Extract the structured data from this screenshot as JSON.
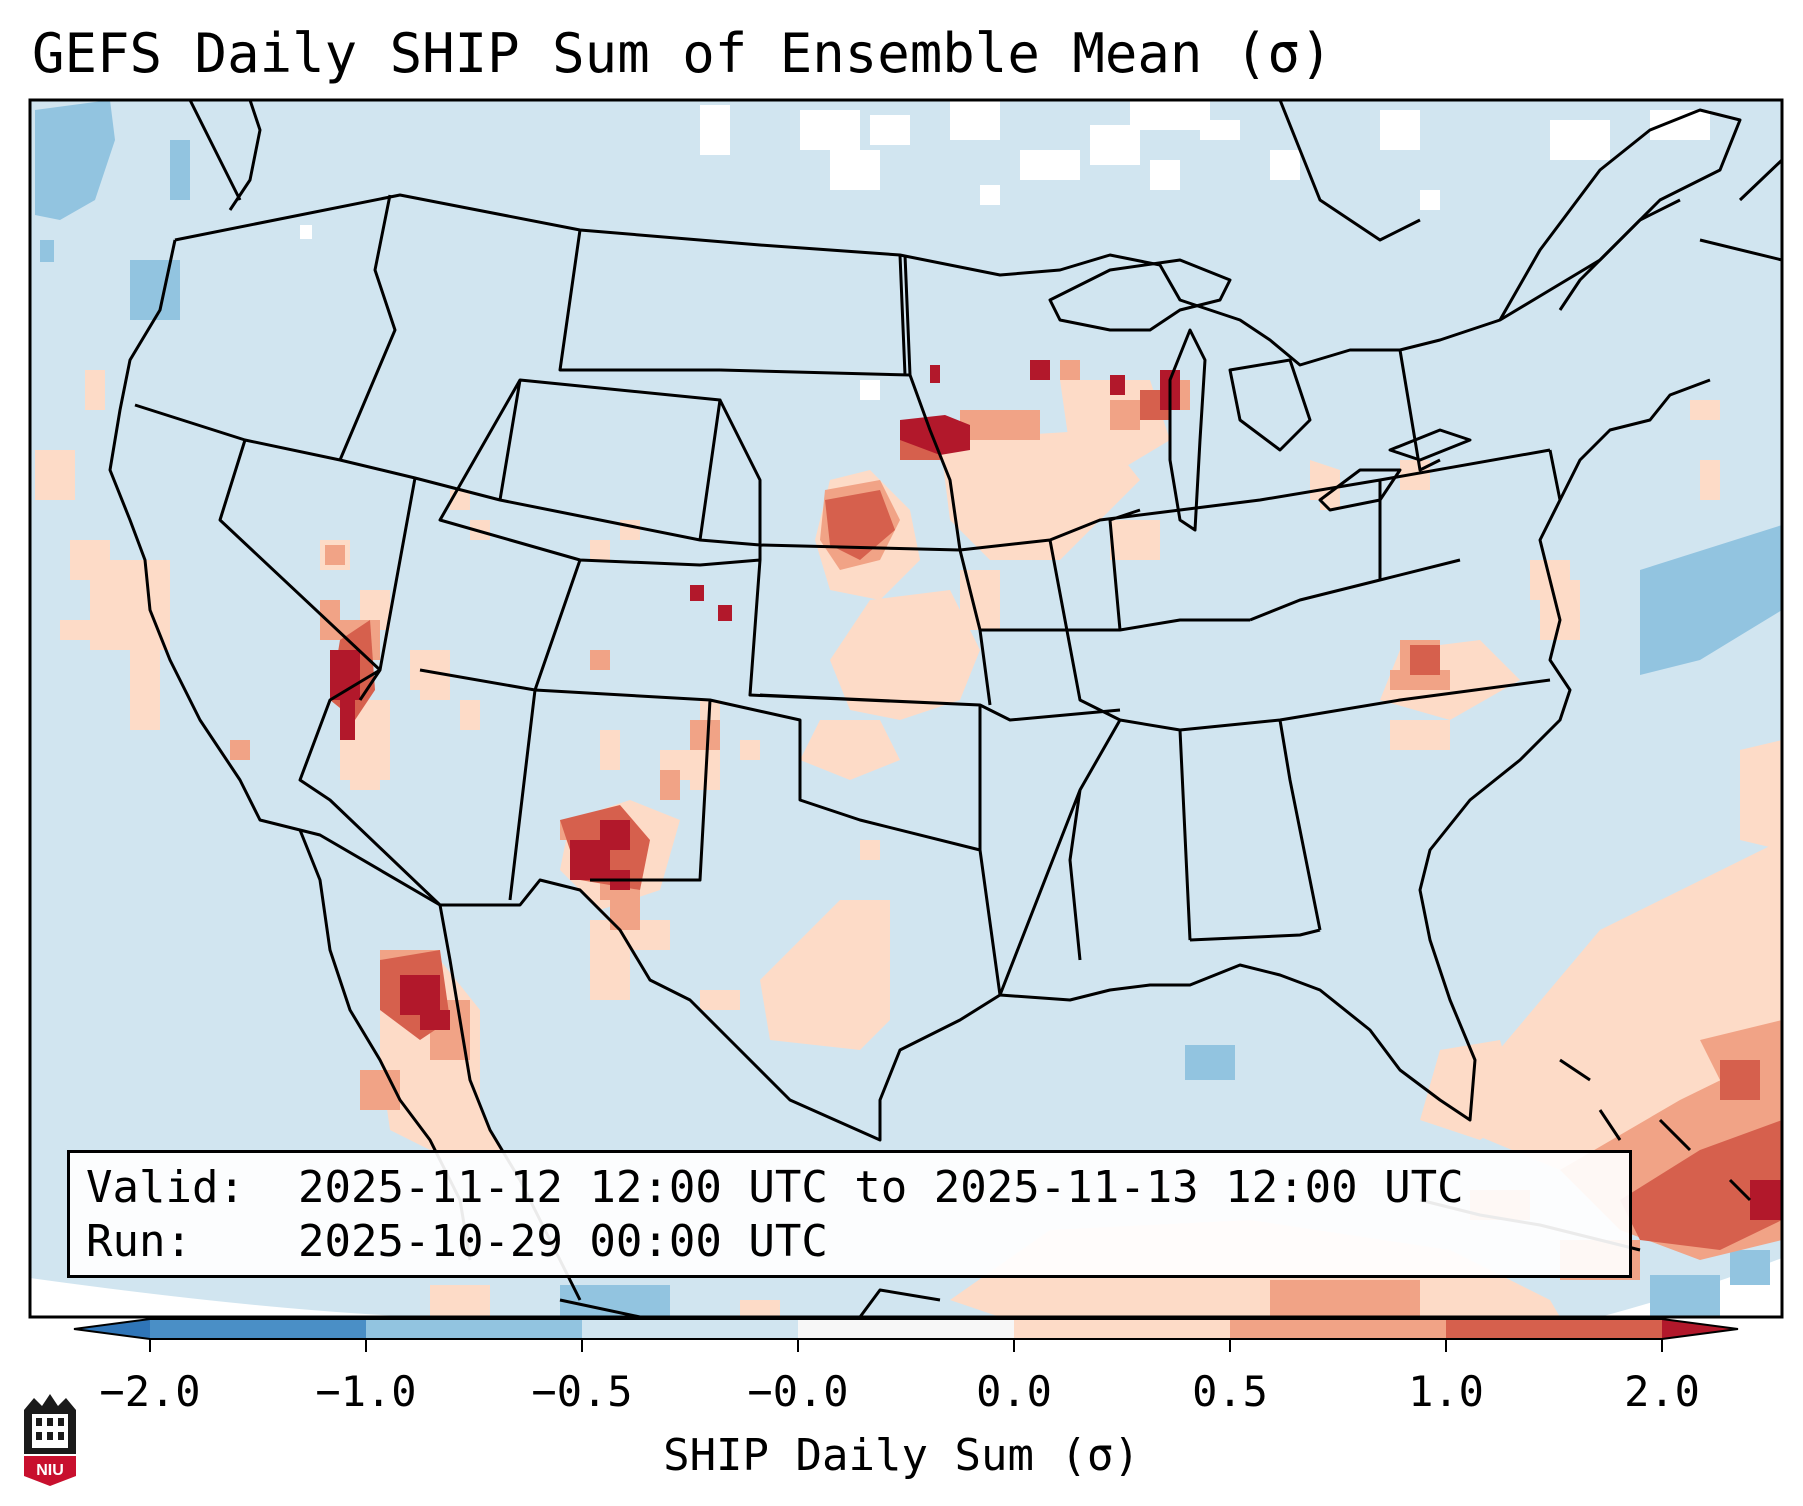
{
  "title": "GEFS Daily SHIP Sum of Ensemble Mean (σ)",
  "info": {
    "valid_label": "Valid:",
    "valid_value": "2025-11-12 12:00 UTC to 2025-11-13 12:00 UTC",
    "run_label": "Run:",
    "run_value": "2025-10-29 00:00 UTC"
  },
  "colorbar": {
    "label": "SHIP Daily Sum (σ)",
    "ticks": [
      "−2.0",
      "−1.0",
      "−0.5",
      "−0.0",
      "0.0",
      "0.5",
      "1.0",
      "2.0"
    ],
    "bin_colors": [
      "#4a8fc6",
      "#92c4e0",
      "#d1e5f0",
      "#f7f7f7",
      "#fddbc7",
      "#f1a386",
      "#d6604d"
    ],
    "extend_low_color": "#2f75b8",
    "extend_high_color": "#b2182b"
  },
  "map": {
    "background_bin_color": "#d1e5f0",
    "projection": "Lambert conformal, CONUS",
    "legend_placement": "bottom-left"
  },
  "logo": {
    "text": "NIU"
  }
}
